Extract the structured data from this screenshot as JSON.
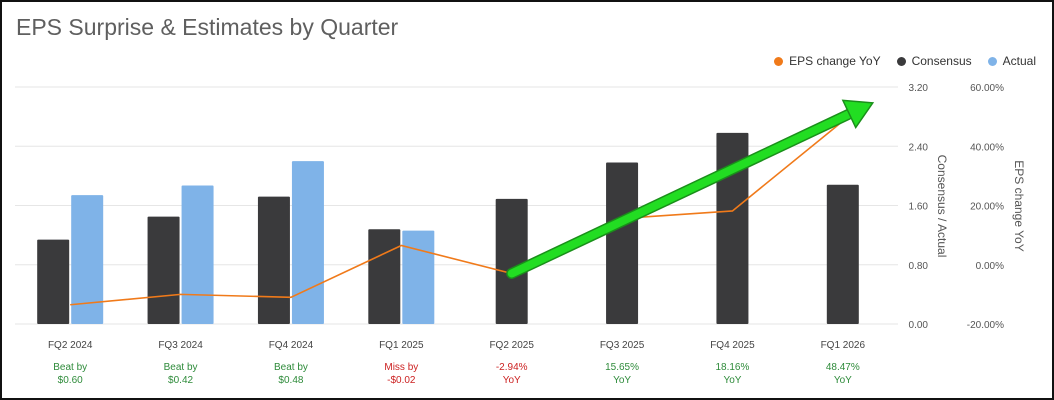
{
  "title": "EPS Surprise & Estimates by Quarter",
  "colors": {
    "consensus": "#3a3a3c",
    "actual": "#7fb3e8",
    "yoy_line": "#f07a1a",
    "arrow": "#22dd22",
    "beat": "#2e8b3a",
    "miss": "#cc2222",
    "grid": "#e6e6e6",
    "axis_text": "#555555"
  },
  "chart_data": {
    "type": "bar",
    "categories": [
      "FQ2 2024",
      "FQ3 2024",
      "FQ4 2024",
      "FQ1 2025",
      "FQ2 2025",
      "FQ3 2025",
      "FQ4 2025",
      "FQ1 2026"
    ],
    "series": [
      {
        "name": "Consensus",
        "axis": "left",
        "values": [
          1.14,
          1.45,
          1.72,
          1.28,
          1.69,
          2.18,
          2.58,
          1.88
        ]
      },
      {
        "name": "Actual",
        "axis": "left",
        "values": [
          1.74,
          1.87,
          2.2,
          1.26,
          null,
          null,
          null,
          null
        ]
      },
      {
        "name": "EPS change YoY",
        "type": "line",
        "axis": "right",
        "values": [
          -13.5,
          -10.0,
          -11.0,
          6.5,
          -2.94,
          15.65,
          18.16,
          48.47
        ]
      }
    ],
    "legend": [
      "EPS change YoY",
      "Consensus",
      "Actual"
    ],
    "legend_position": "top-right",
    "left_axis": {
      "label": "Consensus / Actual",
      "ylim": [
        0,
        3.2
      ],
      "ticks": [
        "0.00",
        "0.80",
        "1.60",
        "2.40",
        "3.20"
      ]
    },
    "right_axis": {
      "label": "EPS change YoY",
      "ylim": [
        -20,
        60
      ],
      "ticks": [
        "-20.00%",
        "0.00%",
        "20.00%",
        "40.00%",
        "60.00%"
      ]
    },
    "annotations": [
      {
        "line1": "Beat by",
        "line2": "$0.60",
        "status": "beat"
      },
      {
        "line1": "Beat by",
        "line2": "$0.42",
        "status": "beat"
      },
      {
        "line1": "Beat by",
        "line2": "$0.48",
        "status": "beat"
      },
      {
        "line1": "Miss by",
        "line2": "-$0.02",
        "status": "miss"
      },
      {
        "line1": "-2.94%",
        "line2": "YoY",
        "status": "miss"
      },
      {
        "line1": "15.65%",
        "line2": "YoY",
        "status": "beat"
      },
      {
        "line1": "18.16%",
        "line2": "YoY",
        "status": "beat"
      },
      {
        "line1": "48.47%",
        "line2": "YoY",
        "status": "beat"
      }
    ],
    "grid": true,
    "overlay_arrow": {
      "color": "green",
      "from": {
        "category": "FQ2 2025",
        "yoy": -2.94
      },
      "to": {
        "category": "FQ1 2026",
        "yoy": 56
      }
    }
  }
}
